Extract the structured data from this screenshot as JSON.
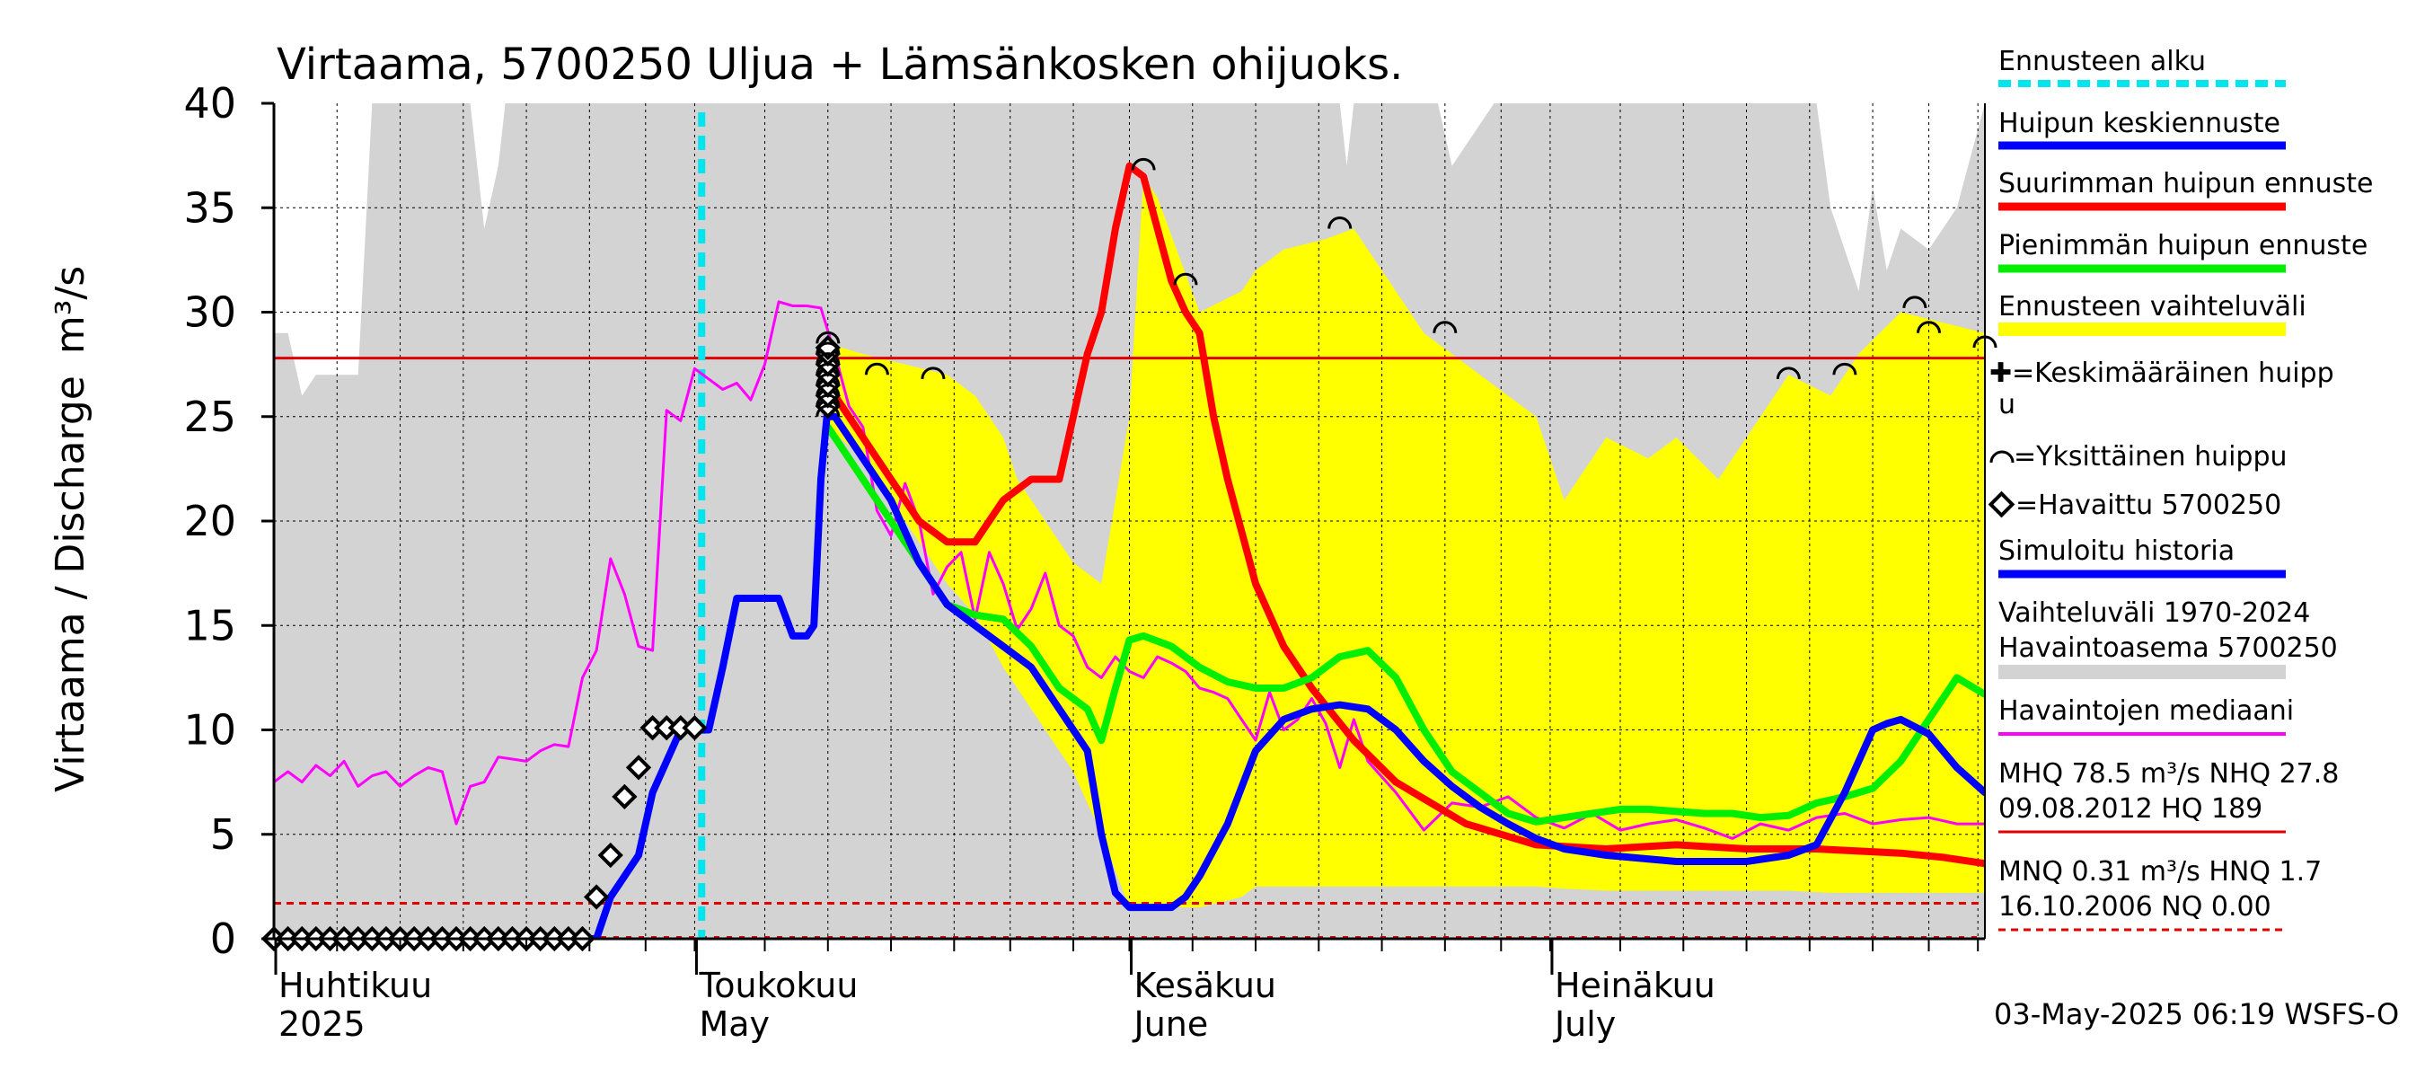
{
  "chart_data": {
    "type": "line",
    "title": "Virtaama, 5700250 Uljua + Lämsänkosken ohijuoks.",
    "ylabel": "Virtaama / Discharge",
    "yunit": "m³/s",
    "ylim": [
      0,
      40
    ],
    "yticks": [
      0,
      5,
      10,
      15,
      20,
      25,
      30,
      35,
      40
    ],
    "xlim_days": [
      0,
      122
    ],
    "grid": true,
    "month_labels": [
      {
        "day": 0,
        "fi": "Huhtikuu",
        "en": "2025"
      },
      {
        "day": 30,
        "fi": "Toukokuu",
        "en": "May"
      },
      {
        "day": 61,
        "fi": "Kesäkuu",
        "en": "June"
      },
      {
        "day": 91,
        "fi": "Heinäkuu",
        "en": "July"
      }
    ],
    "forecast_start_day": 30.5,
    "reference_lines": {
      "MHQ_line": 27.8,
      "MNQ_line": 1.7,
      "NQ_line": 0.0
    },
    "series": [
      {
        "name": "Vaihteluväli 1970-2024 Havaintoasema 5700250",
        "kind": "band",
        "color": "#d3d3d3",
        "x": [
          0,
          1,
          2,
          3,
          4,
          6,
          7,
          12,
          14,
          14.5,
          15,
          16,
          16.5,
          17,
          18,
          30,
          45,
          60,
          65,
          68,
          74,
          76,
          76.5,
          77,
          80,
          83,
          84,
          87,
          90,
          100,
          110,
          111,
          113,
          114,
          115,
          116,
          118,
          120,
          122
        ],
        "upper": [
          29,
          29,
          26,
          27,
          27,
          27,
          40,
          40,
          40,
          37,
          34,
          37,
          40,
          40,
          40,
          40,
          40,
          40,
          40,
          40,
          40,
          40,
          37,
          40,
          40,
          40,
          37,
          40,
          40,
          40,
          40,
          35,
          31,
          36,
          32,
          34,
          33,
          35,
          40
        ],
        "lower": [
          0,
          0,
          0,
          0,
          0,
          0,
          0,
          0,
          0,
          0,
          0,
          0,
          0,
          0,
          0,
          0,
          0,
          0,
          0,
          0,
          0,
          0,
          0,
          0,
          0,
          0,
          0,
          0,
          0,
          0,
          0,
          0,
          0,
          0,
          0,
          0,
          0,
          0,
          0
        ]
      },
      {
        "name": "Ennusteen vaihteluväli",
        "kind": "band",
        "color": "#ffff00",
        "x": [
          39.5,
          42,
          45,
          48,
          50,
          52,
          53,
          55,
          57,
          59,
          61,
          62,
          63,
          66,
          69,
          70,
          72,
          75,
          77,
          80,
          82,
          84,
          86,
          90,
          92,
          95,
          98,
          100,
          103,
          105,
          108,
          111,
          113,
          116,
          119,
          122
        ],
        "upper": [
          28.5,
          28,
          27.5,
          27,
          26,
          24,
          22,
          20,
          18,
          17,
          25,
          36.5,
          35.5,
          30,
          31,
          32,
          33,
          33.5,
          34,
          31,
          29,
          28,
          27,
          25,
          21,
          24,
          23,
          24,
          22,
          24,
          27,
          26,
          28,
          30,
          29.5,
          29
        ],
        "lower": [
          24.5,
          23,
          20,
          17,
          15.5,
          13,
          12,
          10,
          8,
          5,
          1.5,
          1.5,
          1.5,
          1.5,
          2,
          2.5,
          2.5,
          2.5,
          2.5,
          2.5,
          2.5,
          2.5,
          2.5,
          2.5,
          2.4,
          2.3,
          2.3,
          2.3,
          2.3,
          2.3,
          2.3,
          2.2,
          2.2,
          2.2,
          2.2,
          2.2
        ]
      },
      {
        "name": "Havaintojen mediaani",
        "kind": "line",
        "color": "#ff00ff",
        "width": 3,
        "x": [
          0,
          1,
          2,
          3,
          4,
          5,
          6,
          7,
          8,
          9,
          10,
          11,
          12,
          13,
          14,
          15,
          16,
          17,
          18,
          19,
          20,
          21,
          22,
          23,
          24,
          25,
          26,
          27,
          28,
          29,
          30,
          31,
          32,
          33,
          34,
          35,
          36,
          37,
          38,
          39,
          40,
          41,
          42,
          43,
          44,
          45,
          46,
          47,
          48,
          49,
          50,
          51,
          52,
          53,
          54,
          55,
          56,
          57,
          58,
          59,
          60,
          61,
          62,
          63,
          64,
          65,
          66,
          67,
          68,
          69,
          70,
          71,
          72,
          73,
          74,
          75,
          76,
          77,
          78,
          80,
          82,
          84,
          86,
          88,
          90,
          92,
          94,
          96,
          98,
          100,
          102,
          104,
          106,
          108,
          110,
          112,
          114,
          116,
          118,
          120,
          122
        ],
        "y": [
          7.5,
          8,
          7.5,
          8.3,
          7.8,
          8.5,
          7.3,
          7.8,
          8,
          7.3,
          7.8,
          8.2,
          8,
          5.5,
          7.3,
          7.5,
          8.7,
          8.6,
          8.5,
          9,
          9.3,
          9.2,
          12.5,
          13.8,
          18.2,
          16.5,
          14,
          13.8,
          25.3,
          24.8,
          27.3,
          26.8,
          26.3,
          26.6,
          25.8,
          27.5,
          30.5,
          30.3,
          30.3,
          30.2,
          28,
          25.5,
          24.5,
          20.5,
          19.3,
          21.8,
          20,
          16.5,
          17.8,
          18.5,
          15.3,
          18.5,
          17,
          14.8,
          15.8,
          17.5,
          15,
          14.5,
          13,
          12.5,
          13.5,
          12.8,
          12.5,
          13.5,
          13.2,
          12.8,
          12,
          11.8,
          11.5,
          10.5,
          9.5,
          11.8,
          10,
          10.5,
          11.5,
          10.3,
          8.2,
          10.5,
          8.5,
          7,
          5.2,
          6.5,
          6.3,
          6.8,
          5.8,
          5.3,
          6,
          5.2,
          5.5,
          5.7,
          5.3,
          4.8,
          5.5,
          5.2,
          5.8,
          6,
          5.5,
          5.7,
          5.8,
          5.5,
          5.5
        ]
      },
      {
        "name": "Suurimman huipun ennuste",
        "kind": "line",
        "color": "#ff0000",
        "width": 8,
        "x": [
          39.5,
          40,
          42,
          44,
          46,
          48,
          50,
          52,
          54,
          56,
          57,
          58,
          59,
          60,
          61,
          62,
          63,
          64,
          65,
          66,
          67,
          68,
          70,
          72,
          74,
          77,
          80,
          85,
          90,
          95,
          100,
          105,
          110,
          113,
          116,
          119,
          122
        ],
        "y": [
          26,
          26,
          24,
          22,
          20,
          19,
          19,
          21,
          22,
          22,
          25,
          28,
          30,
          34,
          37,
          36.5,
          34,
          31.5,
          30,
          29,
          25,
          22,
          17,
          14,
          12,
          9.5,
          7.5,
          5.5,
          4.5,
          4.3,
          4.5,
          4.3,
          4.3,
          4.2,
          4.1,
          3.9,
          3.6
        ]
      },
      {
        "name": "Pienimmän huipun ennuste",
        "kind": "line",
        "color": "#00ee00",
        "width": 8,
        "x": [
          39.5,
          40,
          42,
          44,
          46,
          48,
          50,
          52,
          54,
          56,
          58,
          59,
          60,
          61,
          62,
          64,
          66,
          68,
          70,
          72,
          74,
          76,
          78,
          80,
          82,
          84,
          86,
          88,
          90,
          92,
          94,
          96,
          98,
          100,
          102,
          104,
          106,
          108,
          110,
          112,
          114,
          116,
          118,
          120,
          122
        ],
        "y": [
          24.5,
          24,
          22,
          20,
          18,
          16,
          15.5,
          15.3,
          14,
          12,
          11,
          9.5,
          12,
          14.3,
          14.5,
          14,
          13,
          12.3,
          12,
          12,
          12.5,
          13.5,
          13.8,
          12.5,
          10,
          8,
          7,
          6,
          5.6,
          5.8,
          6,
          6.2,
          6.2,
          6.1,
          6,
          6,
          5.8,
          5.9,
          6.5,
          6.8,
          7.2,
          8.5,
          10.5,
          12.5,
          11.7
        ]
      },
      {
        "name": "Huipun keskiennuste",
        "kind": "line",
        "color": "#0000ff",
        "width": 8,
        "x": [
          39.5,
          40,
          42,
          44,
          46,
          48,
          50,
          52,
          54,
          56,
          57,
          58,
          59,
          60,
          61,
          62,
          63,
          64,
          65,
          66,
          68,
          70,
          72,
          74,
          76,
          78,
          80,
          82,
          84,
          86,
          88,
          90,
          92,
          95,
          100,
          105,
          108,
          110,
          112,
          114,
          115,
          116,
          118,
          120,
          122
        ],
        "y": [
          25,
          25,
          23,
          21,
          18,
          16,
          15,
          14,
          13,
          11,
          10,
          9,
          5,
          2.2,
          1.5,
          1.5,
          1.5,
          1.5,
          2,
          3,
          5.5,
          9,
          10.5,
          11,
          11.2,
          11,
          10,
          8.5,
          7.3,
          6.3,
          5.5,
          4.8,
          4.3,
          4,
          3.7,
          3.7,
          4,
          4.5,
          7,
          10,
          10.3,
          10.5,
          9.8,
          8.2,
          7
        ]
      },
      {
        "name": "Simuloitu historia",
        "kind": "line",
        "color": "#0000ff",
        "width": 8,
        "x": [
          0,
          23,
          24,
          26,
          27,
          28,
          29,
          30,
          31,
          32,
          33,
          34,
          35,
          36,
          37,
          38,
          38.5,
          39,
          39.5
        ],
        "y": [
          0,
          0,
          2,
          4,
          7,
          8.5,
          10,
          10,
          10,
          13,
          16.3,
          16.3,
          16.3,
          16.3,
          14.5,
          14.5,
          15,
          22,
          25.5
        ]
      },
      {
        "name": "Havaittu 5700250",
        "kind": "markers",
        "color": "#000000",
        "x": [
          0,
          1,
          2,
          3,
          4,
          5,
          6,
          7,
          8,
          9,
          10,
          11,
          12,
          13,
          14,
          15,
          16,
          17,
          18,
          19,
          20,
          21,
          22,
          23,
          24,
          25,
          26,
          27,
          28,
          29,
          30,
          39.5,
          39.5,
          39.5,
          39.5,
          39.5,
          39.5,
          39.5
        ],
        "y": [
          0,
          0,
          0,
          0,
          0,
          0,
          0,
          0,
          0,
          0,
          0,
          0,
          0,
          0,
          0,
          0,
          0,
          0,
          0,
          0,
          0,
          0,
          0,
          2,
          4,
          6.8,
          8.2,
          10.1,
          10.1,
          10.1,
          10.1,
          25.5,
          26,
          26.5,
          27,
          27.5,
          28,
          28.3
        ]
      },
      {
        "name": "Yksittäinen huippu",
        "kind": "peaks",
        "color": "#000000",
        "x": [
          39.5,
          39.5,
          39.5,
          39.5,
          39.5,
          39.5,
          39.5,
          39.5,
          43,
          47,
          62,
          65,
          76,
          83.5,
          108,
          112,
          117,
          118,
          122
        ],
        "y": [
          28.5,
          28,
          27.5,
          27,
          26.5,
          26,
          25.5,
          25,
          27,
          26.8,
          36.8,
          31.3,
          34,
          29,
          26.8,
          27,
          30.2,
          29,
          28.3
        ]
      }
    ],
    "legend": [
      "Ennusteen alku",
      "Huipun keskiennuste",
      "Suurimman huipun ennuste",
      "Pienimmän huipun ennuste",
      "Ennusteen vaihteluväli",
      "=Keskimääräinen huipp",
      "u",
      "=Yksittäinen huippu",
      "=Havaittu 5700250",
      "Simuloitu historia",
      "Vaihteluväli 1970-2024",
      " Havaintoasema 5700250",
      "Havaintojen mediaani",
      "MHQ 78.5 m³/s NHQ 27.8",
      "09.08.2012 HQ  189",
      "MNQ 0.31 m³/s HNQ  1.7",
      "16.10.2006 NQ 0.00"
    ],
    "footer": "03-May-2025 06:19 WSFS-O"
  },
  "colors": {
    "forecast_start": "#00e5ee",
    "grid": "#000000",
    "mhq_line": "#e00000"
  }
}
